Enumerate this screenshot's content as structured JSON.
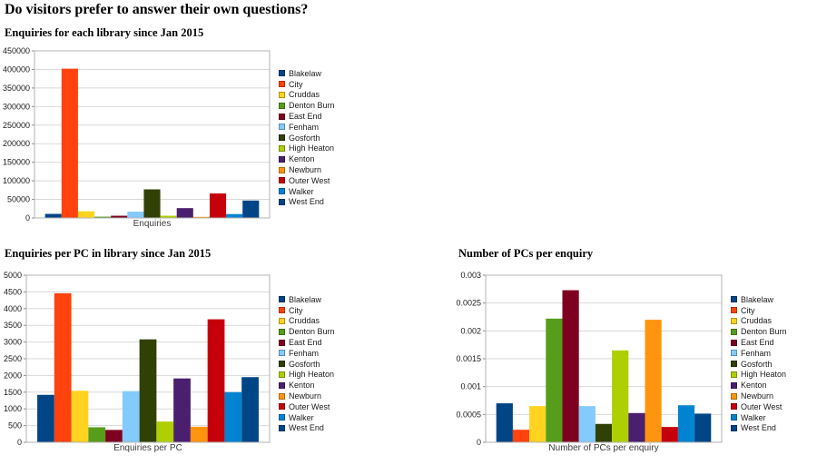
{
  "page": {
    "title": "Do visitors prefer to answer their own questions?"
  },
  "palette": [
    "#004586",
    "#FF420E",
    "#FFD320",
    "#579D1C",
    "#7E0021",
    "#83CAFF",
    "#314004",
    "#AECF00",
    "#4B1F6F",
    "#FF950E",
    "#C5000B",
    "#0084D1",
    "#004586"
  ],
  "chart_data": [
    {
      "type": "bar",
      "title": "Enquiries for each library since Jan 2015",
      "xlabel": "Enquiries",
      "ylabel": "",
      "ylim": [
        0,
        450000
      ],
      "yticks": [
        "0",
        "50000",
        "100000",
        "150000",
        "200000",
        "250000",
        "300000",
        "350000",
        "400000",
        "450000"
      ],
      "grid": true,
      "legend_position": "right",
      "categories": [
        "Blakelaw",
        "City",
        "Cruddas",
        "Denton Burn",
        "East End",
        "Fenham",
        "Gosforth",
        "High Heaton",
        "Kenton",
        "Newburn",
        "Outer West",
        "Walker",
        "West End"
      ],
      "values": [
        11000,
        402000,
        18000,
        3500,
        6000,
        17000,
        77000,
        6000,
        26500,
        3000,
        66000,
        10500,
        47000
      ]
    },
    {
      "type": "bar",
      "title": "Enquiries per PC in library since Jan 2015",
      "xlabel": "Enquiries per PC",
      "ylabel": "",
      "ylim": [
        0,
        5000
      ],
      "yticks": [
        "0",
        "500",
        "1000",
        "1500",
        "2000",
        "2500",
        "3000",
        "3500",
        "4000",
        "4500",
        "5000"
      ],
      "grid": true,
      "legend_position": "right",
      "categories": [
        "Blakelaw",
        "City",
        "Cruddas",
        "Denton Burn",
        "East End",
        "Fenham",
        "Gosforth",
        "High Heaton",
        "Kenton",
        "Newburn",
        "Outer West",
        "Walker",
        "West End"
      ],
      "values": [
        1420,
        4460,
        1540,
        450,
        370,
        1530,
        3080,
        620,
        1910,
        465,
        3680,
        1500,
        1950
      ]
    },
    {
      "type": "bar",
      "title": "Number of PCs per enquiry",
      "xlabel": "Number of PCs per enquiry",
      "ylabel": "",
      "ylim": [
        0,
        0.003
      ],
      "yticks": [
        "0",
        "0.0005",
        "0.001",
        "0.0015",
        "0.002",
        "0.0025",
        "0.003"
      ],
      "grid": true,
      "legend_position": "right",
      "categories": [
        "Blakelaw",
        "City",
        "Cruddas",
        "Denton Burn",
        "East End",
        "Fenham",
        "Gosforth",
        "High Heaton",
        "Kenton",
        "Newburn",
        "Outer West",
        "Walker",
        "West End"
      ],
      "values": [
        0.0007,
        0.000225,
        0.00065,
        0.00222,
        0.00273,
        0.00065,
        0.00033,
        0.00165,
        0.000525,
        0.0022,
        0.000275,
        0.000665,
        0.000515
      ]
    }
  ]
}
